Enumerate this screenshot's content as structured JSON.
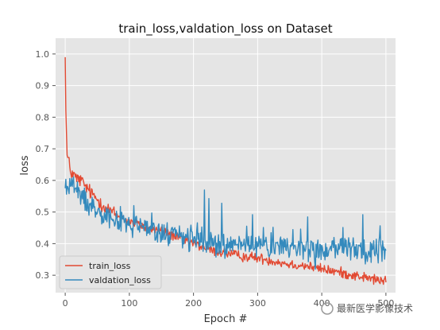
{
  "chart_data": {
    "type": "line",
    "title": "train_loss,valdation_loss on Dataset",
    "xlabel": "Epoch #",
    "ylabel": "loss",
    "xlim": [
      -15,
      515
    ],
    "ylim": [
      0.245,
      1.05
    ],
    "xticks": [
      0,
      100,
      200,
      300,
      400,
      500
    ],
    "yticks": [
      0.3,
      0.4,
      0.5,
      0.6,
      0.7,
      0.8,
      0.9,
      1.0
    ],
    "grid": true,
    "legend_position": "lower-left",
    "series": [
      {
        "name": "train_loss",
        "color": "#e24a33",
        "x": [
          0,
          1,
          3,
          5,
          8,
          12,
          18,
          25,
          32,
          40,
          50,
          60,
          70,
          80,
          90,
          100,
          115,
          130,
          150,
          175,
          200,
          225,
          250,
          275,
          300,
          325,
          350,
          375,
          400,
          425,
          450,
          475,
          500
        ],
        "y": [
          0.99,
          0.82,
          0.68,
          0.665,
          0.63,
          0.62,
          0.605,
          0.6,
          0.58,
          0.56,
          0.54,
          0.52,
          0.505,
          0.49,
          0.48,
          0.47,
          0.46,
          0.45,
          0.44,
          0.42,
          0.4,
          0.38,
          0.37,
          0.36,
          0.355,
          0.345,
          0.335,
          0.33,
          0.32,
          0.31,
          0.3,
          0.29,
          0.28
        ]
      },
      {
        "name": "valdation_loss",
        "color": "#348abd",
        "x": [
          0,
          5,
          10,
          15,
          20,
          30,
          40,
          50,
          60,
          75,
          90,
          100,
          120,
          140,
          160,
          180,
          200,
          220,
          240,
          260,
          280,
          300,
          320,
          340,
          360,
          380,
          400,
          420,
          440,
          460,
          480,
          500
        ],
        "y": [
          0.58,
          0.575,
          0.6,
          0.57,
          0.56,
          0.54,
          0.52,
          0.51,
          0.5,
          0.48,
          0.47,
          0.46,
          0.45,
          0.44,
          0.43,
          0.42,
          0.41,
          0.41,
          0.4,
          0.4,
          0.4,
          0.4,
          0.395,
          0.39,
          0.39,
          0.385,
          0.38,
          0.38,
          0.38,
          0.38,
          0.38,
          0.38
        ]
      }
    ]
  },
  "watermark": {
    "text": "最新医学影像技术"
  }
}
